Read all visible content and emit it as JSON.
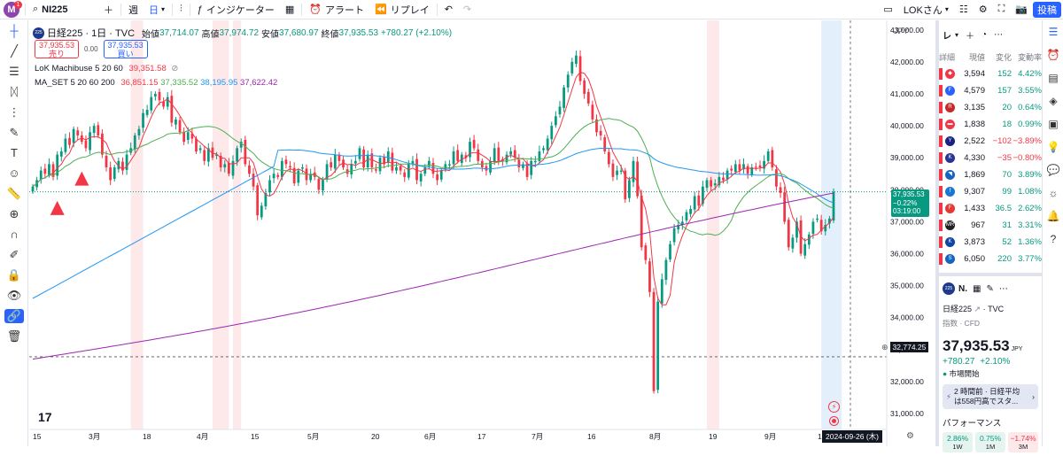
{
  "topbar": {
    "avatar_letter": "M",
    "notif_count": "1",
    "symbol": "NI225",
    "interval": "週",
    "interval2": "日",
    "indicators": "インジケーター",
    "alert": "アラート",
    "replay": "リプレイ",
    "layout_name": "LOKさん",
    "publish": "投稿"
  },
  "legend": {
    "exch_badge": "225",
    "title": "日経225 · 1日 · TVC",
    "o_label": "始値",
    "o": "37,714.07",
    "h_label": "高値",
    "h": "37,974.72",
    "l_label": "安値",
    "l": "37,680.97",
    "c_label": "終値",
    "c": "37,935.53",
    "chg": "+780.27 (+2.10%)",
    "sell_price": "37,935.53",
    "sell_label": "売り",
    "spread": "0.00",
    "buy_price": "37,935.53",
    "buy_label": "買い",
    "ind1_name": "LoK Machibuse 5 20 60",
    "ind1_val": "39,351.58",
    "ind2_name": "MA_SET 5 20 60 200",
    "ind2_v1": "36,851.15",
    "ind2_v2": "37,335.52",
    "ind2_v3": "38,195.95",
    "ind2_v4": "37,622.42"
  },
  "axis": {
    "currency": "JPY",
    "y_ticks": [
      "43,000.00",
      "42,000.00",
      "41,000.00",
      "40,000.00",
      "39,000.00",
      "38,000.00",
      "37,000.00",
      "36,000.00",
      "35,000.00",
      "34,000.00",
      "33,000.00",
      "32,000.00",
      "31,000.00"
    ],
    "x_ticks": [
      "15",
      "3月",
      "18",
      "4月",
      "15",
      "5月",
      "20",
      "6月",
      "17",
      "7月",
      "16",
      "8月",
      "19",
      "9月",
      "17"
    ],
    "price_tag": "37,935.53",
    "price_tag_chg": "−0.22%",
    "price_tag_time": "03:19:00",
    "crosshair_price": "32,774.25",
    "crosshair_date": "2024-09-26 (木)",
    "logo_text": "17"
  },
  "chart_data": {
    "type": "candlestick",
    "y_range": [
      30500,
      43300
    ],
    "closes": [
      38100,
      38300,
      38600,
      38500,
      38800,
      38400,
      39100,
      39200,
      39600,
      39400,
      39900,
      39700,
      39500,
      39300,
      39800,
      40000,
      39700,
      39100,
      38700,
      38300,
      38700,
      38900,
      38600,
      39100,
      39300,
      39700,
      39900,
      40400,
      40500,
      40900,
      41000,
      40800,
      40600,
      40900,
      40100,
      40200,
      39800,
      39500,
      39800,
      39600,
      39200,
      39300,
      38900,
      39300,
      39000,
      39100,
      38700,
      38800,
      38500,
      38900,
      39300,
      39500,
      38800,
      38500,
      38100,
      37200,
      37500,
      37900,
      38300,
      38500,
      38400,
      38900,
      38800,
      38700,
      38200,
      38600,
      38700,
      38300,
      38500,
      38400,
      38000,
      38300,
      38800,
      38700,
      39100,
      38900,
      38700,
      38500,
      38800,
      38900,
      39300,
      38700,
      39100,
      38700,
      38600,
      39000,
      38800,
      39200,
      38600,
      38700,
      38600,
      38400,
      38800,
      38900,
      38300,
      38500,
      38700,
      38900,
      38500,
      38300,
      38600,
      38800,
      38800,
      39200,
      38900,
      39100,
      39000,
      39500,
      39300,
      38900,
      38700,
      38600,
      38900,
      39300,
      38900,
      38900,
      39100,
      39200,
      39000,
      38700,
      38800,
      38400,
      38900,
      38900,
      39200,
      39300,
      39600,
      40000,
      40300,
      40600,
      41200,
      41600,
      42000,
      42200,
      41400,
      41000,
      40700,
      40200,
      39800,
      39700,
      39200,
      38800,
      38400,
      38600,
      38600,
      37700,
      38300,
      38900,
      37800,
      36200,
      35800,
      34800,
      31700,
      34500,
      35200,
      35800,
      36300,
      36800,
      36900,
      37000,
      37300,
      37400,
      37800,
      37500,
      38100,
      38300,
      38100,
      38200,
      38400,
      38300,
      38600,
      38600,
      38800,
      38600,
      38800,
      38500,
      38700,
      38700,
      38700,
      38900,
      39200,
      38700,
      38100,
      37900,
      37000,
      36200,
      36500,
      37000,
      36000,
      36300,
      36600,
      37000,
      37100,
      36700,
      36900,
      37100,
      37936
    ],
    "series": [
      {
        "name": "MA 5",
        "color": "#f23645"
      },
      {
        "name": "MA 20",
        "color": "#4caf50"
      },
      {
        "name": "MA 60",
        "color": "#2196f3"
      },
      {
        "name": "MA 200",
        "color": "#9c27b0"
      }
    ]
  },
  "watchlist": {
    "header": "レ",
    "cols": [
      "詳細",
      "現値",
      "変化",
      "変動率"
    ],
    "rows": [
      {
        "logo_color": "#f23645",
        "logo": "◆",
        "last": "3,594",
        "chg": "152",
        "pct": "4.42%",
        "dir": "up"
      },
      {
        "logo_color": "#2962ff",
        "logo": "F",
        "last": "4,579",
        "chg": "157",
        "pct": "3.55%",
        "dir": "up"
      },
      {
        "logo_color": "#c62828",
        "logo": "R",
        "last": "3,135",
        "chg": "20",
        "pct": "0.64%",
        "dir": "up"
      },
      {
        "logo_color": "#f23645",
        "logo": "▬",
        "last": "1,838",
        "chg": "18",
        "pct": "0.99%",
        "dir": "up"
      },
      {
        "logo_color": "#1a237e",
        "logo": "Y",
        "last": "2,522",
        "chg": "−102",
        "pct": "−3.89%",
        "dir": "dn"
      },
      {
        "logo_color": "#283593",
        "logo": "K",
        "last": "4,330",
        "chg": "−35",
        "pct": "−0.80%",
        "dir": "dn"
      },
      {
        "logo_color": "#1565c0",
        "logo": "◥",
        "last": "1,869",
        "chg": "70",
        "pct": "3.89%",
        "dir": "up"
      },
      {
        "logo_color": "#1976d2",
        "logo": "f",
        "last": "9,307",
        "chg": "99",
        "pct": "1.08%",
        "dir": "up"
      },
      {
        "logo_color": "#e53935",
        "logo": "F",
        "last": "1,433",
        "chg": "36.5",
        "pct": "2.62%",
        "dir": "up"
      },
      {
        "logo_color": "#212121",
        "logo": "MR",
        "last": "967",
        "chg": "31",
        "pct": "3.31%",
        "dir": "up"
      },
      {
        "logo_color": "#0d47a1",
        "logo": "K",
        "last": "3,873",
        "chg": "52",
        "pct": "1.36%",
        "dir": "up"
      },
      {
        "logo_color": "#1565c0",
        "logo": "S",
        "last": "6,050",
        "chg": "220",
        "pct": "3.77%",
        "dir": "up"
      }
    ]
  },
  "detail": {
    "badge": "225",
    "short": "N.",
    "name": "日経225",
    "src": "TVC",
    "type": "指数 · CFD",
    "price": "37,935.53",
    "currency": "JPY",
    "chg": "+780.27",
    "pct": "+2.10%",
    "status": "市場開始",
    "news_time": "2 時間前 · 日経平均",
    "news_text": "は558円高でスタ...",
    "perf_title": "パフォーマンス",
    "perf": [
      {
        "val": "2.86%",
        "lbl": "1W",
        "dir": "up"
      },
      {
        "val": "0.75%",
        "lbl": "1M",
        "dir": "up"
      },
      {
        "val": "−1.74%",
        "lbl": "3M",
        "dir": "dn"
      }
    ]
  }
}
